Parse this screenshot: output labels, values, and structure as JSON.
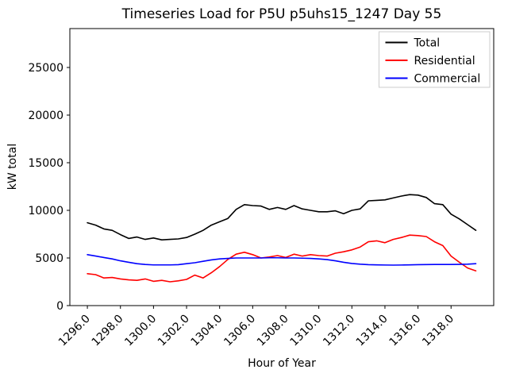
{
  "figure": {
    "background": "#ffffff",
    "frame_color": "#000000",
    "legend_border_color": "#cccccc"
  },
  "chart_data": {
    "type": "line",
    "title": "Timeseries Load for P5U p5uhs15_1247  Day 55",
    "xlabel": "Hour of Year",
    "ylabel": "kW total",
    "grid": false,
    "legend_position": "upper right",
    "xlim": [
      1294.94,
      1320.58
    ],
    "ylim": [
      0,
      29083
    ],
    "x_ticks": [
      1296.0,
      1298.0,
      1300.0,
      1302.0,
      1304.0,
      1306.0,
      1308.0,
      1310.0,
      1312.0,
      1314.0,
      1316.0,
      1318.0
    ],
    "x_tick_labels": [
      "1296.0",
      "1298.0",
      "1300.0",
      "1302.0",
      "1304.0",
      "1306.0",
      "1308.0",
      "1310.0",
      "1312.0",
      "1314.0",
      "1316.0",
      "1318.0"
    ],
    "y_ticks": [
      0,
      5000,
      10000,
      15000,
      20000,
      25000
    ],
    "y_tick_labels": [
      "0",
      "5000",
      "10000",
      "15000",
      "20000",
      "25000"
    ],
    "x": [
      1296.0,
      1296.5,
      1297.0,
      1297.5,
      1298.0,
      1298.5,
      1299.0,
      1299.5,
      1300.0,
      1300.5,
      1301.0,
      1301.5,
      1302.0,
      1302.5,
      1303.0,
      1303.5,
      1304.0,
      1304.5,
      1305.0,
      1305.5,
      1306.0,
      1306.5,
      1307.0,
      1307.5,
      1308.0,
      1308.5,
      1309.0,
      1309.5,
      1310.0,
      1310.5,
      1311.0,
      1311.5,
      1312.0,
      1312.5,
      1313.0,
      1313.5,
      1314.0,
      1314.5,
      1315.0,
      1315.5,
      1316.0,
      1316.5,
      1317.0,
      1317.5,
      1318.0,
      1318.5,
      1319.0,
      1319.5
    ],
    "series": [
      {
        "name": "Total",
        "color": "#000000",
        "values": [
          8700,
          8450,
          8050,
          7900,
          7450,
          7050,
          7200,
          6950,
          7100,
          6900,
          6950,
          7000,
          7150,
          7500,
          7900,
          8450,
          8800,
          9150,
          10100,
          10600,
          10500,
          10450,
          10100,
          10300,
          10100,
          10500,
          10150,
          10000,
          9850,
          9850,
          9950,
          9650,
          10000,
          10150,
          11000,
          11050,
          11100,
          11300,
          11500,
          11650,
          11600,
          11350,
          10700,
          10600,
          9600,
          9100,
          8500,
          7900
        ]
      },
      {
        "name": "Residential",
        "color": "#ff0000",
        "values": [
          3350,
          3250,
          2900,
          2950,
          2800,
          2700,
          2650,
          2800,
          2550,
          2650,
          2500,
          2600,
          2750,
          3200,
          2900,
          3450,
          4100,
          4850,
          5400,
          5600,
          5350,
          5000,
          5100,
          5250,
          5050,
          5400,
          5200,
          5350,
          5250,
          5200,
          5500,
          5650,
          5850,
          6150,
          6700,
          6800,
          6600,
          6950,
          7150,
          7400,
          7350,
          7250,
          6700,
          6300,
          5200,
          4550,
          3950,
          3650
        ]
      },
      {
        "name": "Commercial",
        "color": "#0000ff",
        "values": [
          5350,
          5200,
          5050,
          4900,
          4700,
          4550,
          4400,
          4320,
          4270,
          4270,
          4270,
          4300,
          4400,
          4500,
          4650,
          4800,
          4900,
          4950,
          5000,
          5000,
          5000,
          5000,
          5020,
          5020,
          5000,
          5000,
          4980,
          4950,
          4900,
          4830,
          4700,
          4550,
          4420,
          4350,
          4300,
          4280,
          4260,
          4250,
          4260,
          4280,
          4300,
          4310,
          4320,
          4320,
          4320,
          4330,
          4350,
          4400
        ]
      }
    ]
  }
}
